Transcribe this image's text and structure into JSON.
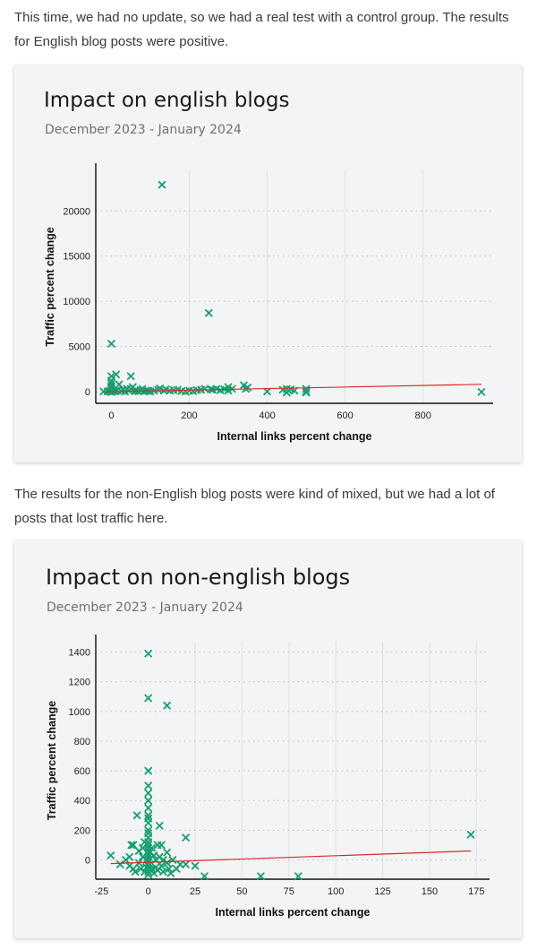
{
  "intro_text": "This time, we had no update, so we had a real test with a control group. The results for English blog posts were positive.",
  "middle_text": "The results for the non-English blog posts were kind of mixed, but we had a lot of posts that lost traffic here.",
  "colors": {
    "marker": "#13a06e",
    "trendline": "#dd2a2a",
    "card_bg": "#f3f4f6"
  },
  "chart_data": [
    {
      "type": "scatter",
      "title": "Impact on english blogs",
      "subtitle": "December 2023 - January 2024",
      "xlabel": "Internal links percent change",
      "ylabel": "Traffic percent change",
      "xlim": [
        -40,
        980
      ],
      "ylim": [
        -1300,
        24500
      ],
      "xticks": [
        0,
        200,
        400,
        600,
        800
      ],
      "yticks": [
        0,
        5000,
        10000,
        15000,
        20000
      ],
      "vgrid": [
        200,
        400,
        600,
        800
      ],
      "grid": true,
      "marker": "x",
      "trendline": {
        "x": [
          -20,
          950
        ],
        "y": [
          -30,
          800
        ]
      },
      "points": [
        [
          -20,
          0
        ],
        [
          -10,
          20
        ],
        [
          -5,
          40
        ],
        [
          0,
          5300
        ],
        [
          0,
          1700
        ],
        [
          0,
          1200
        ],
        [
          0,
          900
        ],
        [
          0,
          600
        ],
        [
          0,
          400
        ],
        [
          0,
          200
        ],
        [
          0,
          100
        ],
        [
          0,
          0
        ],
        [
          0,
          -50
        ],
        [
          5,
          50
        ],
        [
          10,
          30
        ],
        [
          12,
          1900
        ],
        [
          15,
          100
        ],
        [
          20,
          800
        ],
        [
          25,
          50
        ],
        [
          30,
          200
        ],
        [
          35,
          0
        ],
        [
          40,
          300
        ],
        [
          45,
          100
        ],
        [
          50,
          1700
        ],
        [
          50,
          300
        ],
        [
          55,
          500
        ],
        [
          60,
          50
        ],
        [
          65,
          100
        ],
        [
          70,
          20
        ],
        [
          75,
          150
        ],
        [
          80,
          300
        ],
        [
          85,
          50
        ],
        [
          90,
          100
        ],
        [
          95,
          50
        ],
        [
          100,
          0
        ],
        [
          110,
          100
        ],
        [
          120,
          200
        ],
        [
          125,
          350
        ],
        [
          130,
          22900
        ],
        [
          135,
          100
        ],
        [
          140,
          250
        ],
        [
          150,
          100
        ],
        [
          160,
          150
        ],
        [
          170,
          200
        ],
        [
          180,
          50
        ],
        [
          190,
          0
        ],
        [
          200,
          100
        ],
        [
          210,
          50
        ],
        [
          220,
          150
        ],
        [
          230,
          200
        ],
        [
          240,
          300
        ],
        [
          250,
          8700
        ],
        [
          255,
          250
        ],
        [
          260,
          200
        ],
        [
          270,
          300
        ],
        [
          280,
          150
        ],
        [
          290,
          250
        ],
        [
          300,
          500
        ],
        [
          300,
          100
        ],
        [
          310,
          300
        ],
        [
          340,
          700
        ],
        [
          345,
          300
        ],
        [
          350,
          450
        ],
        [
          400,
          0
        ],
        [
          440,
          200
        ],
        [
          450,
          300
        ],
        [
          450,
          -100
        ],
        [
          455,
          100
        ],
        [
          460,
          250
        ],
        [
          470,
          100
        ],
        [
          500,
          300
        ],
        [
          500,
          0
        ],
        [
          500,
          -100
        ],
        [
          950,
          -40
        ]
      ]
    },
    {
      "type": "scatter",
      "title": "Impact on non-english blogs",
      "subtitle": "December 2023 - January 2024",
      "xlabel": "Internal links percent change",
      "ylabel": "Traffic percent change",
      "xlim": [
        -28,
        182
      ],
      "ylim": [
        -130,
        1470
      ],
      "xticks": [
        -25,
        0,
        25,
        50,
        75,
        100,
        125,
        150,
        175
      ],
      "yticks": [
        0,
        200,
        400,
        600,
        800,
        1000,
        1200,
        1400
      ],
      "vgrid": [
        25,
        50,
        75,
        100,
        125,
        150,
        175
      ],
      "grid": true,
      "marker": "x",
      "trendline": {
        "x": [
          -20,
          172
        ],
        "y": [
          -25,
          60
        ]
      },
      "points": [
        [
          -20,
          30
        ],
        [
          -15,
          -30
        ],
        [
          -12,
          0
        ],
        [
          -10,
          20
        ],
        [
          -10,
          -40
        ],
        [
          -9,
          100
        ],
        [
          -8,
          100
        ],
        [
          -8,
          -60
        ],
        [
          -7,
          -80
        ],
        [
          -6,
          300
        ],
        [
          -5,
          60
        ],
        [
          -5,
          -20
        ],
        [
          -4,
          -60
        ],
        [
          -3,
          80
        ],
        [
          -3,
          20
        ],
        [
          -2,
          120
        ],
        [
          -2,
          -80
        ],
        [
          -1,
          0
        ],
        [
          -1,
          -50
        ],
        [
          0,
          1390
        ],
        [
          0,
          1090
        ],
        [
          0,
          600
        ],
        [
          0,
          500
        ],
        [
          0,
          450
        ],
        [
          0,
          400
        ],
        [
          0,
          350
        ],
        [
          0,
          300
        ],
        [
          0,
          280
        ],
        [
          0,
          250
        ],
        [
          0,
          200
        ],
        [
          0,
          180
        ],
        [
          0,
          150
        ],
        [
          0,
          120
        ],
        [
          0,
          100
        ],
        [
          0,
          80
        ],
        [
          0,
          60
        ],
        [
          0,
          40
        ],
        [
          0,
          20
        ],
        [
          0,
          0
        ],
        [
          0,
          -20
        ],
        [
          0,
          -40
        ],
        [
          0,
          -60
        ],
        [
          0,
          -80
        ],
        [
          0,
          -100
        ],
        [
          1,
          50
        ],
        [
          1,
          -30
        ],
        [
          2,
          80
        ],
        [
          2,
          -60
        ],
        [
          3,
          30
        ],
        [
          3,
          -90
        ],
        [
          4,
          0
        ],
        [
          4,
          -50
        ],
        [
          5,
          100
        ],
        [
          5,
          -70
        ],
        [
          6,
          230
        ],
        [
          6,
          20
        ],
        [
          7,
          100
        ],
        [
          7,
          -40
        ],
        [
          8,
          0
        ],
        [
          8,
          -80
        ],
        [
          10,
          1040
        ],
        [
          10,
          50
        ],
        [
          10,
          -20
        ],
        [
          11,
          -60
        ],
        [
          12,
          -90
        ],
        [
          13,
          0
        ],
        [
          15,
          -60
        ],
        [
          17,
          -30
        ],
        [
          20,
          150
        ],
        [
          20,
          -30
        ],
        [
          25,
          -40
        ],
        [
          30,
          -110
        ],
        [
          60,
          -110
        ],
        [
          80,
          -110
        ],
        [
          172,
          170
        ]
      ]
    }
  ]
}
